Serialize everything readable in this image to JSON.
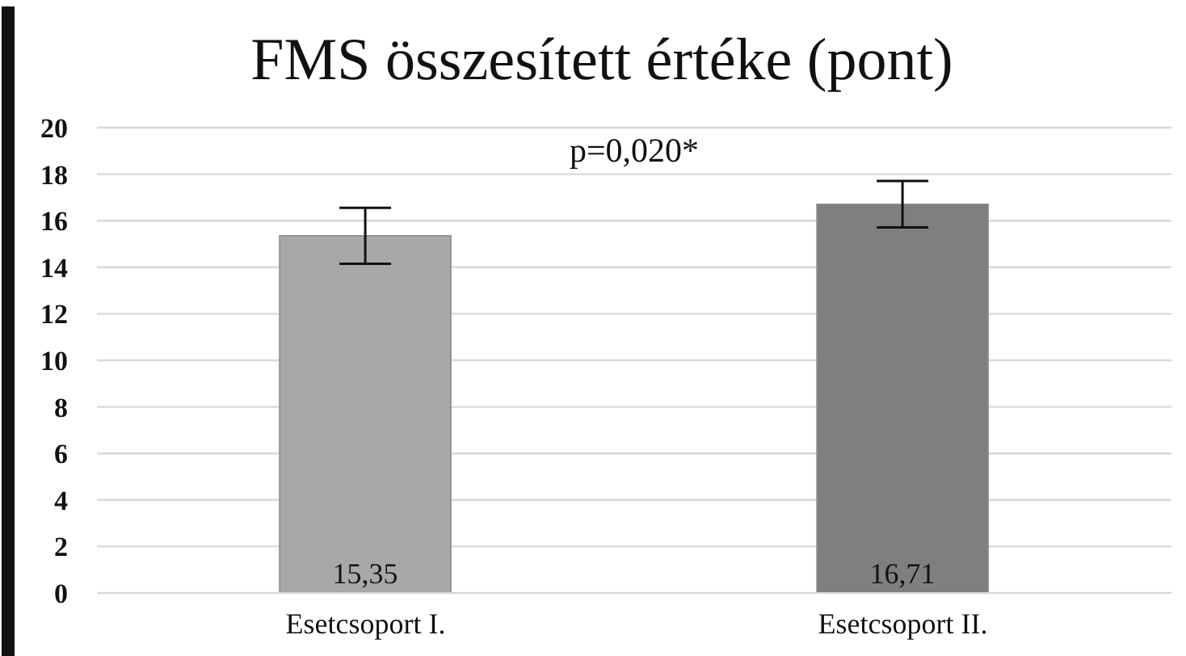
{
  "chart_data": {
    "type": "bar",
    "title": "FMS összesített értéke (pont)",
    "categories": [
      "Esetcsoport I.",
      "Esetcsoport II."
    ],
    "values": [
      15.35,
      16.71
    ],
    "colors": [
      "#a8a8a8",
      "#7f7f7f"
    ],
    "errors": [
      1.2,
      1.0
    ],
    "value_labels": [
      "15,35",
      "16,71"
    ],
    "ylim": [
      0,
      20
    ],
    "yticks": [
      0,
      2,
      4,
      6,
      8,
      10,
      12,
      14,
      16,
      18,
      20
    ],
    "grid": "y",
    "annotations": [
      "p=0,020*"
    ]
  }
}
